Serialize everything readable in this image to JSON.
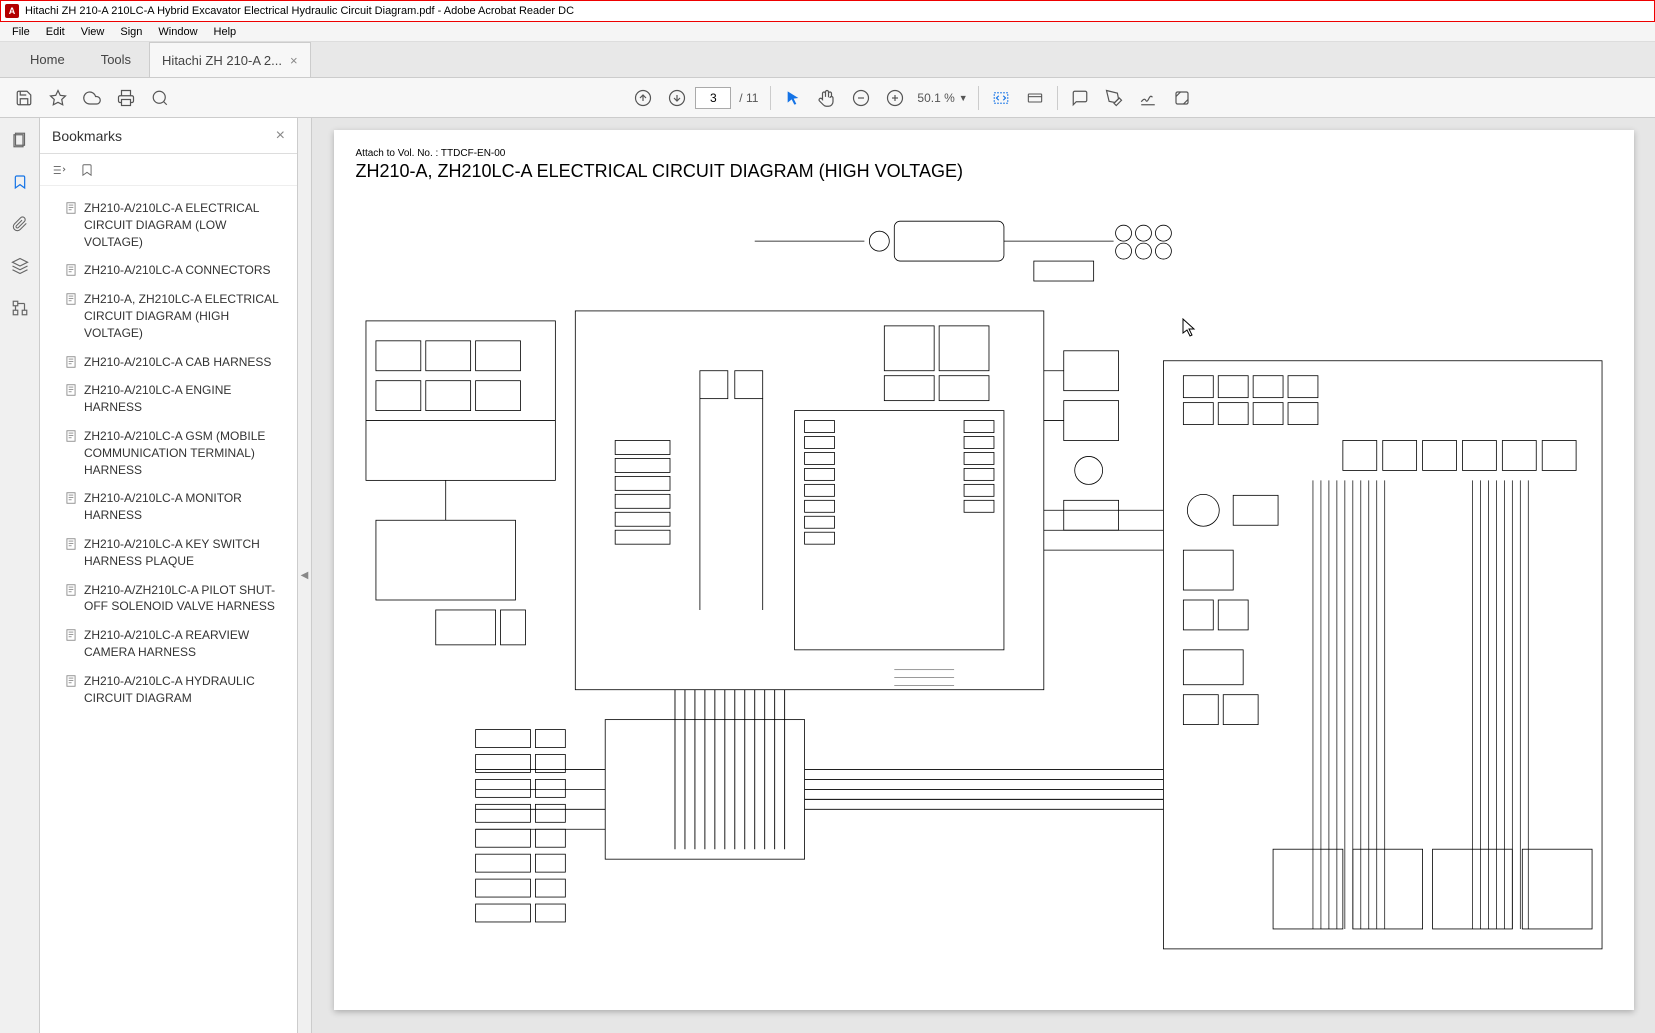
{
  "window": {
    "title": "Hitachi ZH 210-A 210LC-A Hybrid Excavator Electrical Hydraulic Circuit Diagram.pdf - Adobe Acrobat Reader DC"
  },
  "menu": {
    "file": "File",
    "edit": "Edit",
    "view": "View",
    "sign": "Sign",
    "window": "Window",
    "help": "Help"
  },
  "tabs": {
    "home": "Home",
    "tools": "Tools",
    "doc": "Hitachi ZH 210-A 2..."
  },
  "toolbar": {
    "page_current": "3",
    "page_total": "/ 11",
    "zoom": "50.1 %"
  },
  "bookmarks": {
    "title": "Bookmarks",
    "items": [
      "ZH210-A/210LC-A ELECTRICAL CIRCUIT DIAGRAM (LOW VOLTAGE)",
      "ZH210-A/210LC-A CONNECTORS",
      "ZH210-A, ZH210LC-A ELECTRICAL CIRCUIT DIAGRAM (HIGH VOLTAGE)",
      "ZH210-A/210LC-A CAB HARNESS",
      "ZH210-A/210LC-A ENGINE HARNESS",
      "ZH210-A/210LC-A GSM (MOBILE COMMUNICATION TERMINAL) HARNESS",
      "ZH210-A/210LC-A MONITOR HARNESS",
      "ZH210-A/210LC-A KEY SWITCH HARNESS PLAQUE",
      "ZH210-A/ZH210LC-A PILOT SHUT-OFF SOLENOID VALVE HARNESS",
      "ZH210-A/210LC-A REARVIEW CAMERA HARNESS",
      "ZH210-A/210LC-A HYDRAULIC CIRCUIT DIAGRAM"
    ]
  },
  "document": {
    "header_small": "Attach to Vol. No. : TTDCF-EN-00",
    "title": "ZH210-A, ZH210LC-A ELECTRICAL CIRCUIT DIAGRAM (HIGH VOLTAGE)"
  },
  "colors": {
    "accent": "#1473e6",
    "titlebar_border": "#e00000",
    "app_icon": "#b30000"
  }
}
